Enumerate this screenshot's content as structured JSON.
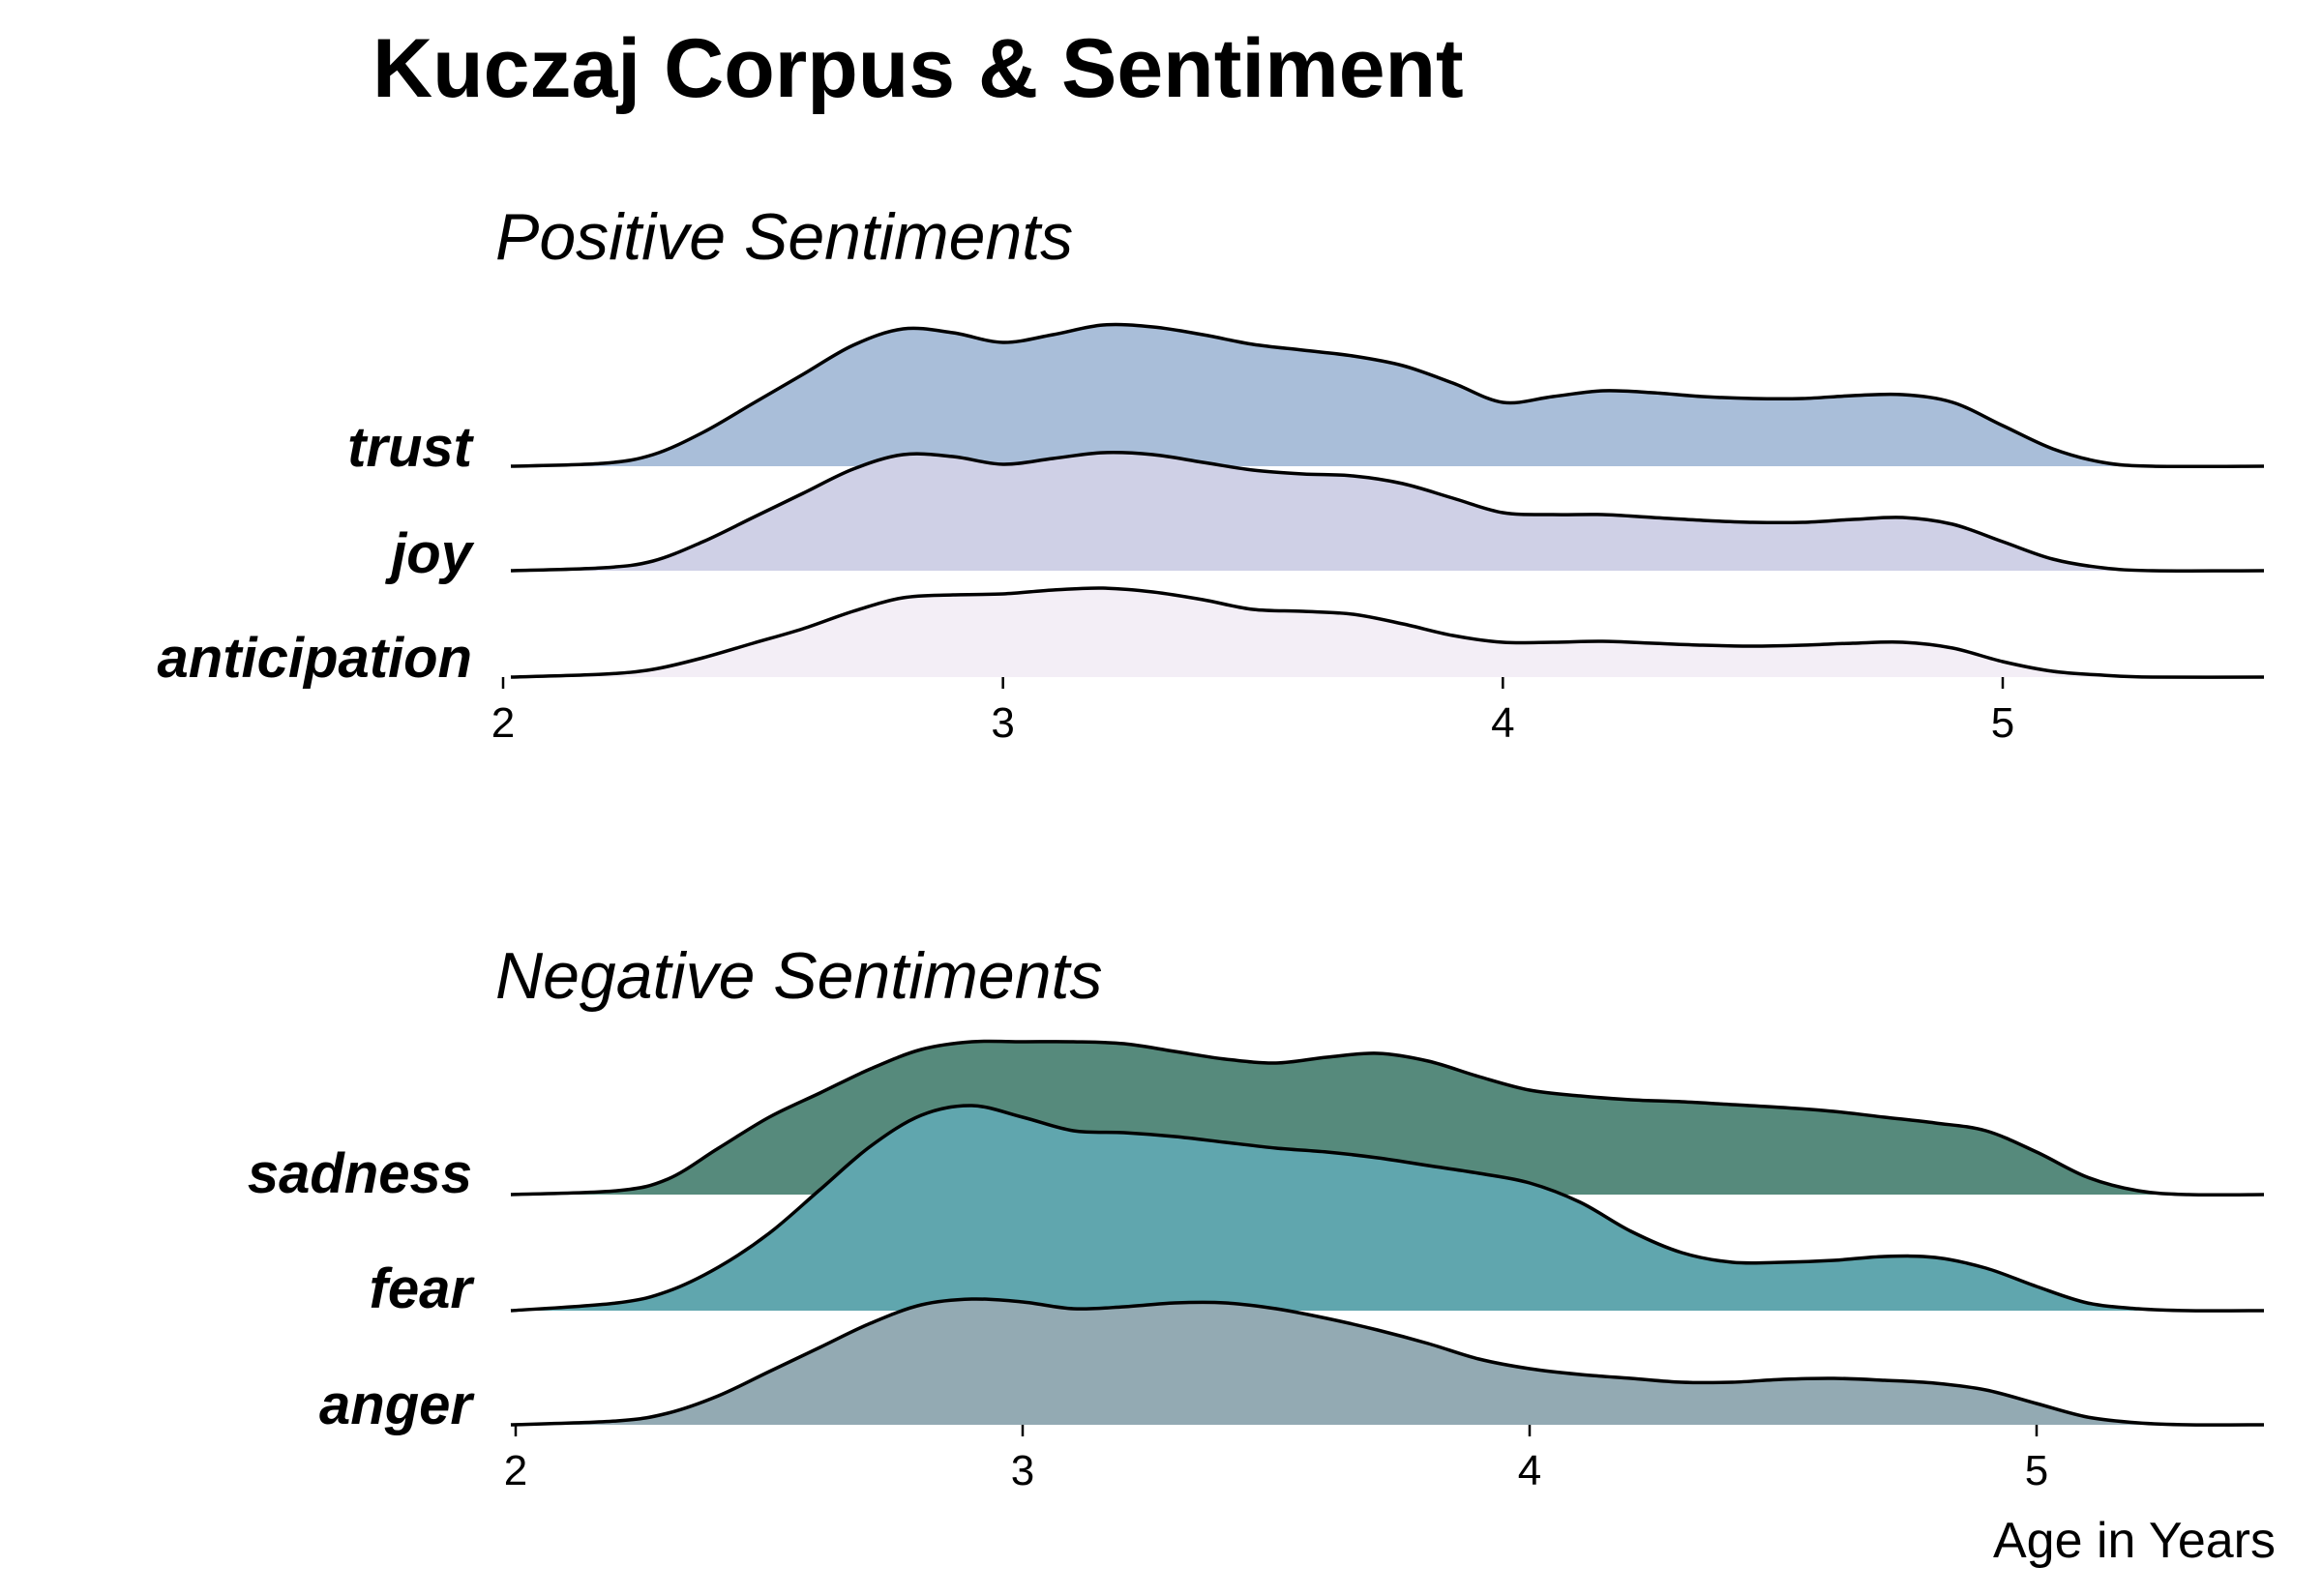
{
  "title": "Kuczaj Corpus & Sentiment",
  "chart_data": [
    {
      "type": "ridgeline",
      "subtitle": "Positive Sentiments",
      "xlabel": "",
      "xlim": [
        2,
        5.4
      ],
      "xticks": [
        2,
        3,
        4,
        5
      ],
      "series": [
        {
          "name": "anticipation",
          "color": "#f3eef6",
          "x": [
            2.0,
            2.2,
            2.3,
            2.4,
            2.5,
            2.6,
            2.7,
            2.8,
            2.9,
            3.0,
            3.1,
            3.2,
            3.3,
            3.4,
            3.5,
            3.6,
            3.7,
            3.8,
            3.9,
            4.0,
            4.1,
            4.2,
            4.3,
            4.4,
            4.5,
            4.6,
            4.7,
            4.8,
            4.9,
            5.0,
            5.1,
            5.2,
            5.3,
            5.4
          ],
          "y": [
            0.0,
            0.03,
            0.08,
            0.2,
            0.35,
            0.5,
            0.68,
            0.82,
            0.85,
            0.86,
            0.9,
            0.92,
            0.88,
            0.8,
            0.7,
            0.68,
            0.65,
            0.55,
            0.43,
            0.36,
            0.36,
            0.37,
            0.35,
            0.33,
            0.32,
            0.33,
            0.35,
            0.36,
            0.3,
            0.16,
            0.06,
            0.02,
            0.0,
            0.0
          ]
        },
        {
          "name": "joy",
          "color": "#cfd0e6",
          "x": [
            2.0,
            2.2,
            2.3,
            2.4,
            2.5,
            2.6,
            2.7,
            2.8,
            2.9,
            3.0,
            3.1,
            3.2,
            3.3,
            3.4,
            3.5,
            3.6,
            3.7,
            3.8,
            3.9,
            4.0,
            4.1,
            4.2,
            4.3,
            4.4,
            4.5,
            4.6,
            4.7,
            4.8,
            4.9,
            5.0,
            5.1,
            5.2,
            5.3,
            5.4
          ],
          "y": [
            0.0,
            0.03,
            0.1,
            0.3,
            0.55,
            0.8,
            1.05,
            1.2,
            1.18,
            1.1,
            1.16,
            1.22,
            1.2,
            1.12,
            1.04,
            1.0,
            0.98,
            0.9,
            0.75,
            0.6,
            0.58,
            0.58,
            0.55,
            0.52,
            0.5,
            0.5,
            0.53,
            0.55,
            0.48,
            0.3,
            0.12,
            0.03,
            0.0,
            0.0
          ]
        },
        {
          "name": "trust",
          "color": "#a9bed9",
          "x": [
            2.0,
            2.2,
            2.3,
            2.4,
            2.5,
            2.6,
            2.7,
            2.8,
            2.9,
            3.0,
            3.1,
            3.2,
            3.3,
            3.4,
            3.5,
            3.6,
            3.7,
            3.8,
            3.9,
            4.0,
            4.1,
            4.2,
            4.3,
            4.4,
            4.5,
            4.6,
            4.7,
            4.8,
            4.9,
            5.0,
            5.1,
            5.2,
            5.3,
            5.4
          ],
          "y": [
            0.0,
            0.03,
            0.12,
            0.35,
            0.65,
            0.95,
            1.25,
            1.42,
            1.38,
            1.28,
            1.36,
            1.46,
            1.44,
            1.36,
            1.26,
            1.2,
            1.14,
            1.04,
            0.86,
            0.66,
            0.72,
            0.78,
            0.76,
            0.72,
            0.7,
            0.7,
            0.73,
            0.74,
            0.66,
            0.42,
            0.18,
            0.04,
            0.0,
            0.0
          ]
        }
      ]
    },
    {
      "type": "ridgeline",
      "subtitle": "Negative Sentiments",
      "xlabel": "Age in Years",
      "xlim": [
        2,
        5.4
      ],
      "xticks": [
        2,
        3,
        4,
        5
      ],
      "series": [
        {
          "name": "anger",
          "color": "#93aab3",
          "x": [
            2.0,
            2.2,
            2.3,
            2.4,
            2.5,
            2.6,
            2.7,
            2.8,
            2.9,
            3.0,
            3.1,
            3.2,
            3.3,
            3.4,
            3.5,
            3.6,
            3.7,
            3.8,
            3.9,
            4.0,
            4.1,
            4.2,
            4.3,
            4.4,
            4.5,
            4.6,
            4.7,
            4.8,
            4.9,
            5.0,
            5.1,
            5.2,
            5.3,
            5.4
          ],
          "y": [
            0.0,
            0.04,
            0.12,
            0.3,
            0.55,
            0.8,
            1.05,
            1.24,
            1.3,
            1.27,
            1.2,
            1.22,
            1.26,
            1.26,
            1.2,
            1.1,
            0.98,
            0.84,
            0.68,
            0.58,
            0.52,
            0.48,
            0.44,
            0.44,
            0.47,
            0.48,
            0.46,
            0.43,
            0.36,
            0.22,
            0.08,
            0.02,
            0.0,
            0.0
          ]
        },
        {
          "name": "fear",
          "color": "#60a6ae",
          "x": [
            2.0,
            2.2,
            2.3,
            2.4,
            2.5,
            2.6,
            2.7,
            2.8,
            2.9,
            3.0,
            3.1,
            3.2,
            3.3,
            3.4,
            3.5,
            3.6,
            3.7,
            3.8,
            3.9,
            4.0,
            4.1,
            4.2,
            4.3,
            4.4,
            4.5,
            4.6,
            4.7,
            4.8,
            4.9,
            5.0,
            5.1,
            5.2,
            5.3,
            5.4
          ],
          "y": [
            0.0,
            0.08,
            0.2,
            0.45,
            0.8,
            1.25,
            1.7,
            2.02,
            2.12,
            2.0,
            1.86,
            1.84,
            1.8,
            1.74,
            1.68,
            1.64,
            1.58,
            1.5,
            1.42,
            1.32,
            1.12,
            0.82,
            0.6,
            0.5,
            0.5,
            0.52,
            0.56,
            0.55,
            0.44,
            0.25,
            0.08,
            0.02,
            0.0,
            0.0
          ]
        },
        {
          "name": "sadness",
          "color": "#568a7c",
          "x": [
            2.0,
            2.2,
            2.3,
            2.4,
            2.5,
            2.6,
            2.7,
            2.8,
            2.9,
            3.0,
            3.1,
            3.2,
            3.3,
            3.4,
            3.5,
            3.6,
            3.7,
            3.8,
            3.9,
            4.0,
            4.1,
            4.2,
            4.3,
            4.4,
            4.5,
            4.6,
            4.7,
            4.8,
            4.9,
            5.0,
            5.1,
            5.2,
            5.3,
            5.4
          ],
          "y": [
            0.0,
            0.04,
            0.16,
            0.48,
            0.8,
            1.05,
            1.3,
            1.5,
            1.58,
            1.58,
            1.58,
            1.56,
            1.48,
            1.4,
            1.36,
            1.42,
            1.46,
            1.38,
            1.22,
            1.08,
            1.02,
            0.98,
            0.96,
            0.93,
            0.9,
            0.86,
            0.8,
            0.74,
            0.66,
            0.44,
            0.18,
            0.04,
            0.0,
            0.0
          ]
        }
      ]
    }
  ]
}
